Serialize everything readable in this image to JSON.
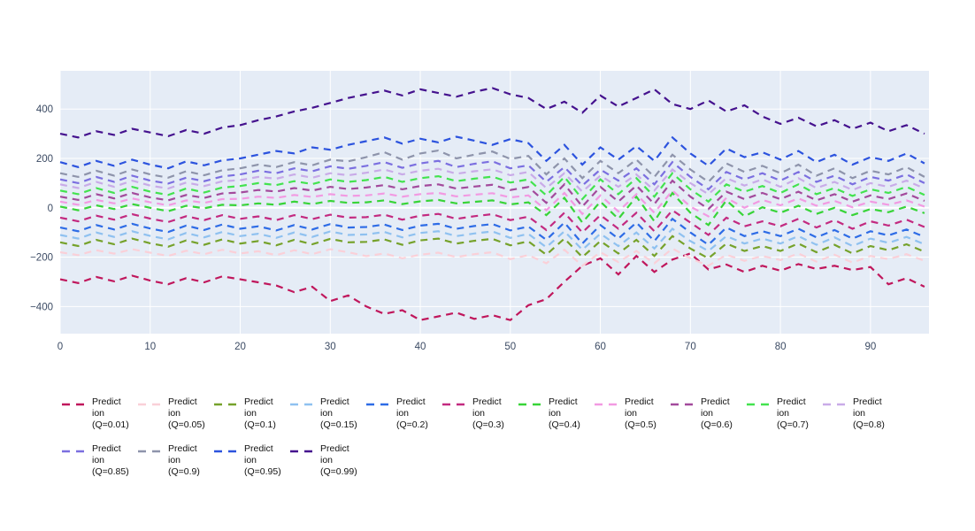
{
  "figure": {
    "background": "#ffffff"
  },
  "chart_data": {
    "type": "line",
    "title": "",
    "xlabel": "",
    "ylabel": "",
    "line_style": "dashed",
    "grid": true,
    "legend_position": "bottom",
    "plot_background": "#e5ecf6",
    "grid_color": "#ffffff",
    "tick_color": "#3b4a63",
    "legend_text_color": "#111111",
    "xlim": [
      0,
      96.5
    ],
    "ylim": [
      -510,
      555
    ],
    "x_ticks": [
      0,
      10,
      20,
      30,
      40,
      50,
      60,
      70,
      80,
      90
    ],
    "y_ticks": [
      -400,
      -200,
      0,
      200,
      400
    ],
    "x": [
      0,
      2,
      4,
      6,
      8,
      10,
      12,
      14,
      16,
      18,
      20,
      22,
      24,
      26,
      28,
      30,
      32,
      34,
      36,
      38,
      40,
      42,
      44,
      46,
      48,
      50,
      52,
      54,
      56,
      58,
      60,
      62,
      64,
      66,
      68,
      70,
      72,
      74,
      76,
      78,
      80,
      82,
      84,
      86,
      88,
      90,
      92,
      94,
      96
    ],
    "series": [
      {
        "name": "Prediction (Q=0.01)",
        "color": "#c0175c",
        "values": [
          -290,
          -305,
          -280,
          -298,
          -275,
          -295,
          -310,
          -285,
          -302,
          -278,
          -290,
          -302,
          -315,
          -342,
          -320,
          -378,
          -355,
          -400,
          -430,
          -415,
          -455,
          -440,
          -425,
          -450,
          -435,
          -455,
          -395,
          -370,
          -300,
          -235,
          -205,
          -270,
          -195,
          -260,
          -210,
          -185,
          -250,
          -230,
          -260,
          -235,
          -255,
          -228,
          -248,
          -235,
          -252,
          -240,
          -310,
          -285,
          -320
        ]
      },
      {
        "name": "Prediction (Q=0.05)",
        "color": "#fad0d8",
        "values": [
          -180,
          -192,
          -172,
          -186,
          -168,
          -182,
          -195,
          -174,
          -188,
          -170,
          -185,
          -176,
          -192,
          -172,
          -188,
          -168,
          -180,
          -196,
          -185,
          -205,
          -190,
          -182,
          -200,
          -188,
          -180,
          -208,
          -192,
          -225,
          -170,
          -235,
          -180,
          -220,
          -175,
          -225,
          -165,
          -205,
          -235,
          -190,
          -215,
          -195,
          -212,
          -185,
          -218,
          -190,
          -222,
          -195,
          -208,
          -188,
          -215
        ]
      },
      {
        "name": "Prediction (Q=0.1)",
        "color": "#76a22b",
        "values": [
          -140,
          -155,
          -130,
          -148,
          -125,
          -144,
          -158,
          -132,
          -150,
          -128,
          -145,
          -135,
          -152,
          -130,
          -148,
          -126,
          -140,
          -138,
          -128,
          -150,
          -132,
          -125,
          -145,
          -134,
          -126,
          -152,
          -136,
          -190,
          -125,
          -200,
          -135,
          -185,
          -130,
          -195,
          -115,
          -165,
          -205,
          -145,
          -175,
          -155,
          -175,
          -145,
          -180,
          -150,
          -185,
          -155,
          -172,
          -148,
          -178
        ]
      },
      {
        "name": "Prediction (Q=0.15)",
        "color": "#8fc1f0",
        "values": [
          -110,
          -125,
          -100,
          -118,
          -95,
          -114,
          -128,
          -102,
          -120,
          -98,
          -115,
          -105,
          -122,
          -100,
          -118,
          -96,
          -110,
          -108,
          -98,
          -120,
          -102,
          -95,
          -115,
          -104,
          -96,
          -122,
          -106,
          -160,
          -95,
          -170,
          -105,
          -155,
          -100,
          -165,
          -85,
          -135,
          -175,
          -115,
          -145,
          -125,
          -145,
          -115,
          -150,
          -120,
          -155,
          -125,
          -142,
          -118,
          -148
        ]
      },
      {
        "name": "Prediction (Q=0.2)",
        "color": "#2e6ce6",
        "values": [
          -80,
          -95,
          -70,
          -88,
          -65,
          -84,
          -98,
          -72,
          -90,
          -68,
          -85,
          -75,
          -92,
          -70,
          -88,
          -66,
          -80,
          -78,
          -68,
          -90,
          -72,
          -65,
          -85,
          -74,
          -66,
          -92,
          -76,
          -130,
          -60,
          -145,
          -70,
          -125,
          -60,
          -135,
          -45,
          -100,
          -150,
          -80,
          -115,
          -95,
          -115,
          -85,
          -120,
          -90,
          -125,
          -95,
          -112,
          -88,
          -118
        ]
      },
      {
        "name": "Prediction (Q=0.3)",
        "color": "#c32a80",
        "values": [
          -40,
          -55,
          -32,
          -48,
          -26,
          -44,
          -58,
          -34,
          -50,
          -30,
          -45,
          -35,
          -50,
          -30,
          -46,
          -28,
          -40,
          -38,
          -28,
          -48,
          -32,
          -25,
          -45,
          -34,
          -26,
          -50,
          -36,
          -90,
          -20,
          -100,
          -30,
          -85,
          -20,
          -95,
          -10,
          -60,
          -110,
          -40,
          -75,
          -55,
          -75,
          -45,
          -80,
          -50,
          -85,
          -55,
          -72,
          -48,
          -78
        ]
      },
      {
        "name": "Prediction (Q=0.4)",
        "color": "#38d438",
        "values": [
          5,
          -10,
          10,
          -5,
          15,
          0,
          -14,
          8,
          -2,
          12,
          10,
          18,
          12,
          25,
          15,
          28,
          20,
          22,
          30,
          15,
          26,
          32,
          18,
          24,
          30,
          14,
          22,
          -30,
          40,
          -60,
          25,
          -45,
          45,
          -55,
          60,
          -20,
          -70,
          30,
          -35,
          2,
          -20,
          8,
          -25,
          0,
          -30,
          -5,
          -18,
          5,
          -22
        ]
      },
      {
        "name": "Prediction (Q=0.5)",
        "color": "#f29ae2",
        "values": [
          25,
          12,
          32,
          18,
          38,
          22,
          10,
          30,
          20,
          35,
          36,
          45,
          40,
          52,
          44,
          55,
          48,
          50,
          58,
          45,
          55,
          60,
          46,
          53,
          59,
          42,
          50,
          -10,
          60,
          -25,
          50,
          -15,
          55,
          -20,
          70,
          5,
          -35,
          40,
          0,
          32,
          10,
          38,
          8,
          28,
          2,
          25,
          12,
          30,
          5
        ]
      },
      {
        "name": "Prediction (Q=0.6)",
        "color": "#a34a9c",
        "values": [
          45,
          32,
          55,
          38,
          60,
          42,
          30,
          52,
          40,
          58,
          62,
          72,
          66,
          80,
          70,
          85,
          76,
          82,
          92,
          75,
          88,
          95,
          78,
          86,
          93,
          72,
          84,
          20,
          95,
          5,
          85,
          25,
          90,
          15,
          110,
          45,
          -5,
          65,
          35,
          60,
          35,
          65,
          30,
          55,
          25,
          50,
          35,
          58,
          28
        ]
      },
      {
        "name": "Prediction (Q=0.7)",
        "color": "#43e34f",
        "values": [
          70,
          55,
          80,
          60,
          85,
          65,
          52,
          78,
          62,
          82,
          88,
          100,
          92,
          108,
          96,
          115,
          105,
          112,
          125,
          105,
          120,
          128,
          108,
          118,
          126,
          102,
          115,
          50,
          125,
          35,
          115,
          55,
          120,
          45,
          140,
          75,
          25,
          95,
          65,
          88,
          60,
          95,
          55,
          80,
          48,
          75,
          60,
          85,
          52
        ]
      },
      {
        "name": "Prediction (Q=0.8)",
        "color": "#c9abe8",
        "values": [
          95,
          80,
          105,
          85,
          110,
          90,
          78,
          102,
          88,
          107,
          112,
          125,
          118,
          135,
          122,
          140,
          132,
          142,
          155,
          135,
          150,
          158,
          138,
          148,
          156,
          132,
          145,
          80,
          140,
          65,
          130,
          85,
          135,
          70,
          155,
          100,
          55,
          120,
          90,
          115,
          85,
          120,
          80,
          105,
          72,
          100,
          85,
          110,
          78
        ]
      },
      {
        "name": "Prediction (Q=0.85)",
        "color": "#7b6fe0",
        "values": [
          115,
          100,
          125,
          105,
          130,
          110,
          98,
          122,
          108,
          127,
          135,
          150,
          140,
          160,
          148,
          168,
          158,
          170,
          185,
          162,
          180,
          190,
          165,
          178,
          188,
          160,
          172,
          105,
          165,
          90,
          155,
          110,
          160,
          95,
          185,
          125,
          75,
          145,
          115,
          140,
          110,
          145,
          105,
          130,
          95,
          125,
          110,
          135,
          100
        ]
      },
      {
        "name": "Prediction (Q=0.9)",
        "color": "#8e94ab",
        "values": [
          140,
          125,
          150,
          130,
          155,
          135,
          122,
          148,
          132,
          152,
          160,
          175,
          165,
          185,
          172,
          195,
          188,
          205,
          225,
          195,
          220,
          232,
          200,
          215,
          228,
          198,
          210,
          135,
          200,
          120,
          190,
          140,
          195,
          125,
          215,
          155,
          105,
          180,
          145,
          170,
          140,
          175,
          130,
          160,
          120,
          150,
          135,
          165,
          125
        ]
      },
      {
        "name": "Prediction (Q=0.95)",
        "color": "#2c53de",
        "values": [
          185,
          165,
          190,
          170,
          195,
          175,
          160,
          188,
          172,
          192,
          200,
          215,
          230,
          220,
          245,
          235,
          255,
          270,
          285,
          260,
          280,
          265,
          288,
          272,
          255,
          278,
          262,
          190,
          255,
          175,
          245,
          195,
          250,
          190,
          285,
          220,
          170,
          240,
          205,
          225,
          195,
          230,
          185,
          215,
          175,
          205,
          190,
          220,
          180
        ]
      },
      {
        "name": "Prediction (Q=0.99)",
        "color": "#45128e",
        "values": [
          300,
          285,
          310,
          295,
          320,
          305,
          290,
          315,
          300,
          325,
          335,
          355,
          370,
          390,
          405,
          425,
          445,
          460,
          475,
          455,
          480,
          465,
          450,
          470,
          485,
          460,
          445,
          400,
          430,
          385,
          455,
          410,
          445,
          480,
          420,
          400,
          435,
          390,
          415,
          370,
          340,
          365,
          330,
          355,
          320,
          345,
          310,
          335,
          300
        ]
      }
    ]
  }
}
